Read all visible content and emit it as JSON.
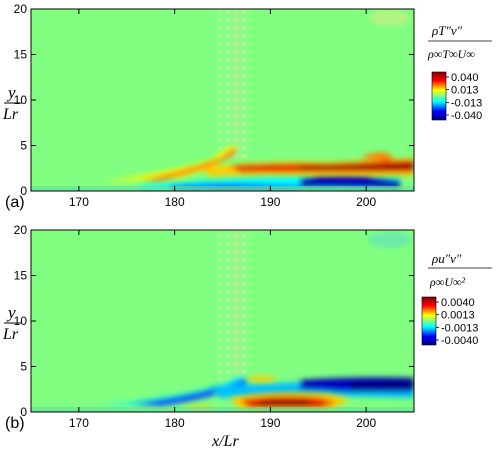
{
  "chart_data": [
    {
      "panel_label": "(a)",
      "type": "heatmap",
      "colorbar": {
        "title_numerator": "ρT″v″",
        "title_denominator": "ρ∞T∞U∞",
        "tick_labels": [
          "0.040",
          "0.013",
          "-0.013",
          "-0.040"
        ],
        "range": [
          -0.04,
          0.04
        ],
        "colors": [
          "#000080",
          "#0000ff",
          "#00ffff",
          "#80ff80",
          "#ffff00",
          "#ff0000",
          "#800000"
        ]
      },
      "ylabel_top": "y",
      "ylabel_bottom": "Lr",
      "xlim": [
        165,
        205
      ],
      "ylim": [
        0,
        20
      ],
      "x_ticks": [
        170,
        180,
        190,
        200
      ],
      "y_ticks": [
        0,
        5,
        10,
        15,
        20
      ],
      "structures": [
        {
          "kind": "positive",
          "x": [
            176,
            186
          ],
          "y": [
            1.0,
            5.0
          ]
        },
        {
          "kind": "positive",
          "x": [
            183,
            205
          ],
          "y": [
            2.0,
            3.5
          ]
        },
        {
          "kind": "negative",
          "x": [
            180,
            203
          ],
          "y": [
            0.3,
            1.5
          ]
        }
      ]
    },
    {
      "panel_label": "(b)",
      "type": "heatmap",
      "colorbar": {
        "title_numerator": "ρu″v″",
        "title_denominator": "ρ∞U∞²",
        "tick_labels": [
          "0.0040",
          "0.0013",
          "-0.0013",
          "-0.0040"
        ],
        "range": [
          -0.004,
          0.004
        ],
        "colors": [
          "#000080",
          "#0000ff",
          "#00ffff",
          "#80ff80",
          "#ffff00",
          "#ff0000",
          "#800000"
        ]
      },
      "ylabel_top": "y",
      "ylabel_bottom": "Lr",
      "xlabel": "x/Lr",
      "xlim": [
        165,
        205
      ],
      "ylim": [
        0,
        20
      ],
      "x_ticks": [
        170,
        180,
        190,
        200
      ],
      "y_ticks": [
        0,
        5,
        10,
        15,
        20
      ],
      "structures": [
        {
          "kind": "negative",
          "x": [
            176,
            205
          ],
          "y": [
            1.0,
            4.0
          ]
        },
        {
          "kind": "positive",
          "x": [
            183,
            198
          ],
          "y": [
            0.3,
            2.0
          ]
        }
      ]
    }
  ]
}
